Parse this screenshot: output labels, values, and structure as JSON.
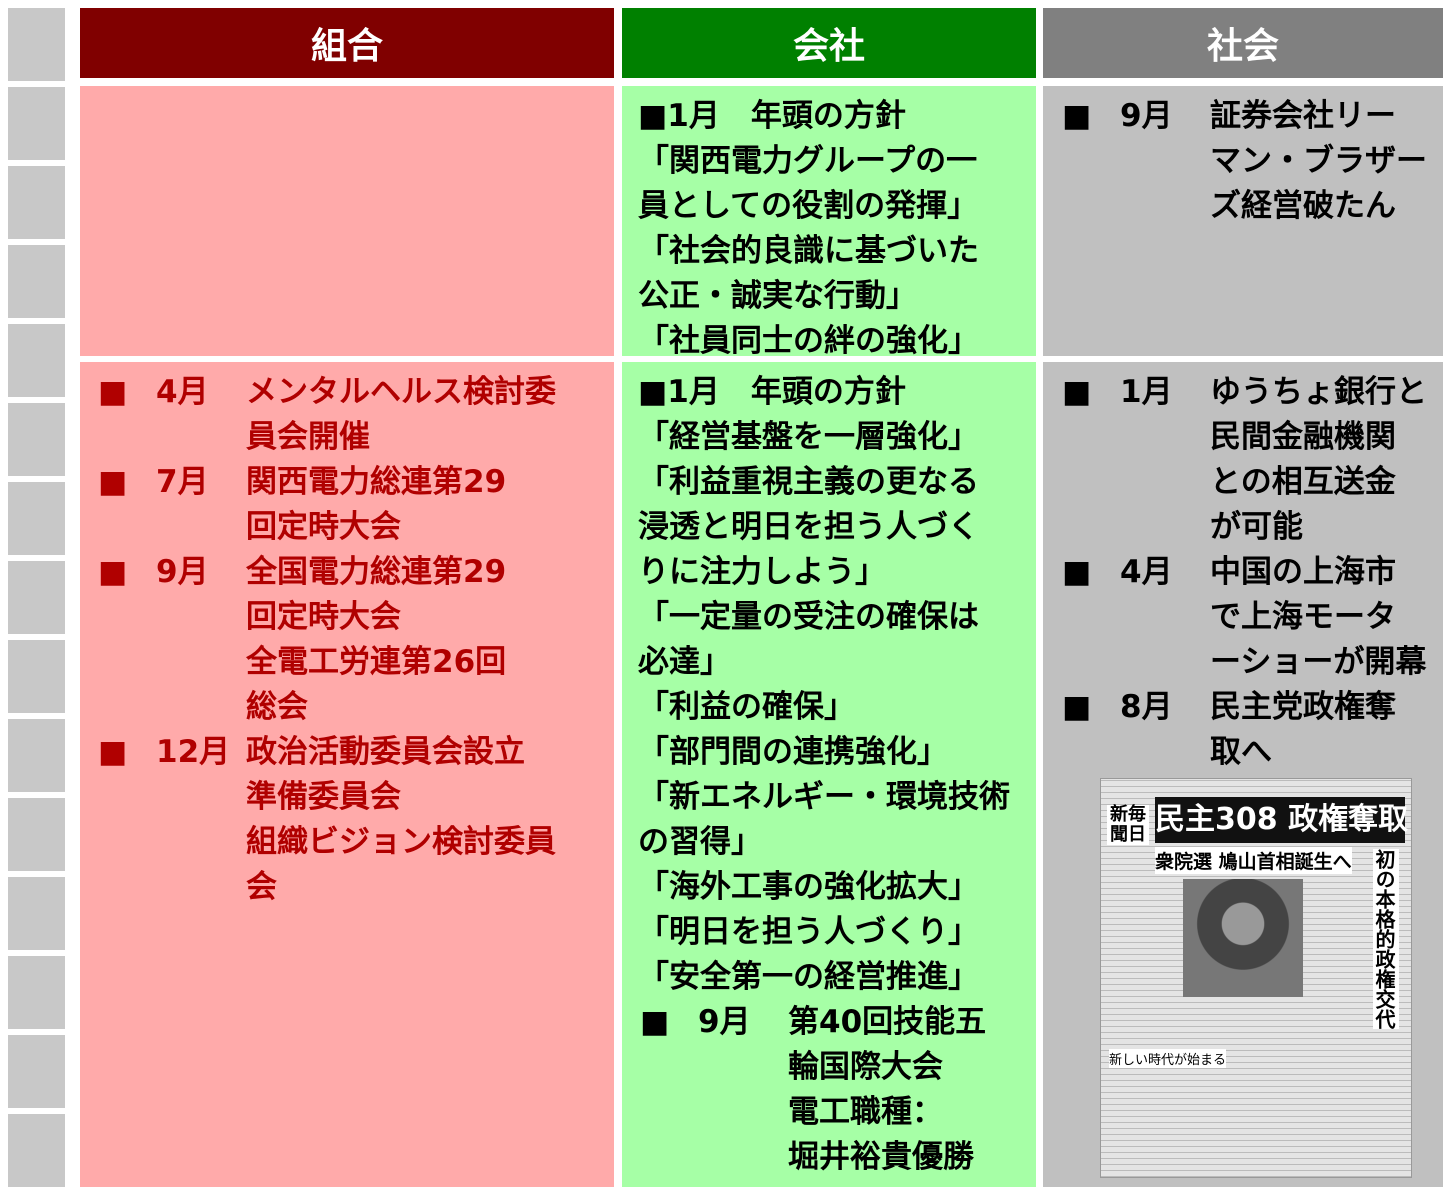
{
  "header": [
    "組合",
    "会社",
    "社会"
  ],
  "marker": "■",
  "rows": [
    {
      "union": [],
      "company": {
        "lines": [
          "■1月　年頭の方針",
          "「関西電力グループの一",
          "員としての役割の発揮」",
          "「社会的良識に基づいた",
          "公正・誠実な行動」",
          "「社員同士の絆の強化」"
        ],
        "items": []
      },
      "society": [
        {
          "month": "9月",
          "lines": [
            "証券会社リー",
            "マン・ブラザー",
            "ズ経営破たん"
          ]
        }
      ]
    },
    {
      "union": [
        {
          "month": "4月",
          "lines": [
            "メンタルヘルス検討委",
            "員会開催"
          ]
        },
        {
          "month": "7月",
          "lines": [
            "関西電力総連第29",
            "回定時大会"
          ]
        },
        {
          "month": "9月",
          "lines": [
            "全国電力総連第29",
            "回定時大会",
            "全電工労連第26回",
            "総会"
          ]
        },
        {
          "month": "12月",
          "lines": [
            "政治活動委員会設立",
            "準備委員会",
            "組織ビジョン検討委員",
            "会"
          ]
        }
      ],
      "company": {
        "lines": [
          "■1月　年頭の方針",
          "「経営基盤を一層強化」",
          "「利益重視主義の更なる",
          "浸透と明日を担う人づく",
          "りに注力しよう」",
          "「一定量の受注の確保は",
          "必達」",
          "「利益の確保」",
          "「部門間の連携強化」",
          "「新エネルギー・環境技術",
          "の習得」",
          "「海外工事の強化拡大」",
          "「明日を担う人づくり」",
          "「安全第一の経営推進」"
        ],
        "items": [
          {
            "month": "9月",
            "lines": [
              "第40回技能五",
              "輪国際大会",
              "電工職種：",
              "堀井裕貴優勝"
            ]
          }
        ]
      },
      "society": [
        {
          "month": "1月",
          "lines": [
            "ゆうちょ銀行と",
            "民間金融機関",
            "との相互送金",
            "が可能"
          ]
        },
        {
          "month": "4月",
          "lines": [
            "中国の上海市",
            "で上海モータ",
            "ーショーが開幕"
          ]
        },
        {
          "month": "8月",
          "lines": [
            "民主党政権奪",
            "取へ"
          ]
        }
      ]
    }
  ],
  "newspaper": {
    "masthead": "新毎聞日",
    "headline": "民主308 政権奪取",
    "subhead": "衆院選 鳩山首相誕生へ",
    "vertical": "初の本格的政権交代",
    "caption": "新しい時代が始まる"
  }
}
